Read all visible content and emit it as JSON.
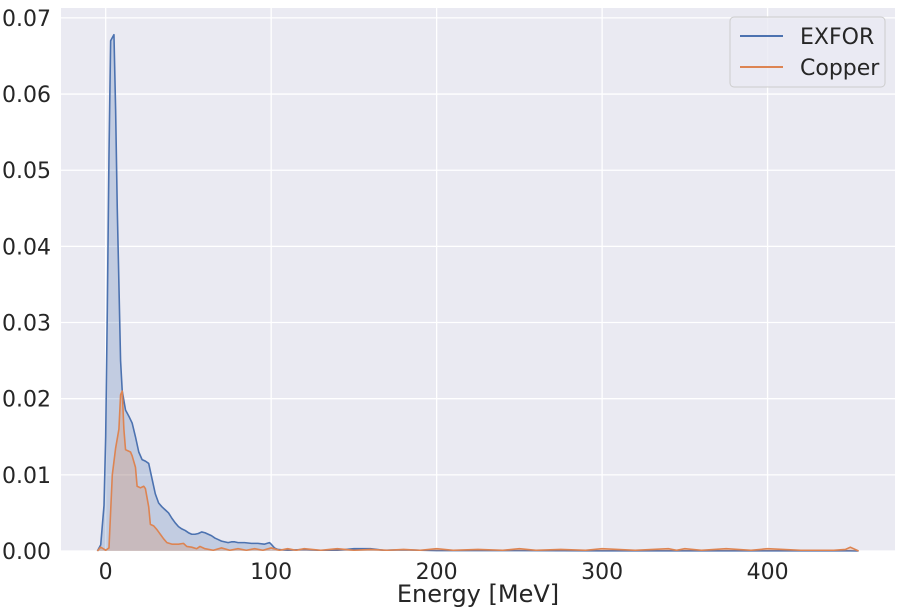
{
  "chart_data": {
    "type": "area",
    "title": "",
    "xlabel": "Energy [MeV]",
    "ylabel": "",
    "xlim": [
      -27,
      477
    ],
    "ylim": [
      0,
      0.0713
    ],
    "xticks": [
      0,
      100,
      200,
      300,
      400
    ],
    "xtick_labels": [
      "0",
      "100",
      "200",
      "300",
      "400"
    ],
    "yticks": [
      0,
      0.01,
      0.02,
      0.03,
      0.04,
      0.05,
      0.06,
      0.07
    ],
    "ytick_labels": [
      "0.00",
      "0.01",
      "0.02",
      "0.03",
      "0.04",
      "0.05",
      "0.06",
      "0.07"
    ],
    "grid": true,
    "legend_position": "top-right",
    "series": [
      {
        "name": "EXFOR",
        "color": "#4c72b0",
        "points": [
          [
            -5,
            0
          ],
          [
            -3,
            0.0008
          ],
          [
            -1,
            0.006
          ],
          [
            0,
            0.015
          ],
          [
            1,
            0.032
          ],
          [
            2,
            0.052
          ],
          [
            3,
            0.067
          ],
          [
            5,
            0.0678
          ],
          [
            6,
            0.058
          ],
          [
            7,
            0.045
          ],
          [
            8,
            0.035
          ],
          [
            9,
            0.025
          ],
          [
            10,
            0.021
          ],
          [
            12,
            0.0185
          ],
          [
            14,
            0.0177
          ],
          [
            16,
            0.0168
          ],
          [
            18,
            0.015
          ],
          [
            20,
            0.013
          ],
          [
            22,
            0.012
          ],
          [
            24,
            0.0118
          ],
          [
            26,
            0.0115
          ],
          [
            28,
            0.0095
          ],
          [
            30,
            0.0075
          ],
          [
            32,
            0.0063
          ],
          [
            34,
            0.0058
          ],
          [
            36,
            0.0054
          ],
          [
            38,
            0.005
          ],
          [
            40,
            0.0043
          ],
          [
            42,
            0.0037
          ],
          [
            44,
            0.0032
          ],
          [
            46,
            0.0029
          ],
          [
            48,
            0.0027
          ],
          [
            50,
            0.0024
          ],
          [
            52,
            0.0022
          ],
          [
            54,
            0.0022
          ],
          [
            56,
            0.0023
          ],
          [
            58,
            0.0025
          ],
          [
            60,
            0.0024
          ],
          [
            62,
            0.0022
          ],
          [
            64,
            0.002
          ],
          [
            66,
            0.0017
          ],
          [
            68,
            0.0015
          ],
          [
            70,
            0.0013
          ],
          [
            72,
            0.0012
          ],
          [
            74,
            0.0011
          ],
          [
            76,
            0.0012
          ],
          [
            78,
            0.0012
          ],
          [
            80,
            0.0011
          ],
          [
            84,
            0.0011
          ],
          [
            88,
            0.001
          ],
          [
            92,
            0.001
          ],
          [
            96,
            0.0009
          ],
          [
            99,
            0.0011
          ],
          [
            100,
            0.0009
          ],
          [
            102,
            0.0004
          ],
          [
            104,
            0.0002
          ],
          [
            110,
            0.0001
          ],
          [
            120,
            0.0002
          ],
          [
            128,
            0.0001
          ],
          [
            140,
            0.0001
          ],
          [
            150,
            0.0003
          ],
          [
            160,
            0.0003
          ],
          [
            168,
            0.0001
          ],
          [
            180,
            0.00015
          ],
          [
            190,
            0.0001
          ],
          [
            200,
            5e-05
          ],
          [
            250,
            5e-05
          ],
          [
            300,
            3e-05
          ],
          [
            350,
            2e-05
          ],
          [
            400,
            2e-05
          ],
          [
            450,
            2e-05
          ],
          [
            455,
            0
          ]
        ]
      },
      {
        "name": "Copper",
        "color": "#dd8452",
        "points": [
          [
            -5,
            0
          ],
          [
            -3,
            0.0005
          ],
          [
            0,
            0.0001
          ],
          [
            2,
            0.0004
          ],
          [
            4,
            0.01
          ],
          [
            6,
            0.0135
          ],
          [
            8,
            0.016
          ],
          [
            9,
            0.0205
          ],
          [
            10,
            0.021
          ],
          [
            11,
            0.016
          ],
          [
            12,
            0.0133
          ],
          [
            15,
            0.013
          ],
          [
            16,
            0.0125
          ],
          [
            18,
            0.011
          ],
          [
            19,
            0.0085
          ],
          [
            21,
            0.0083
          ],
          [
            23,
            0.0085
          ],
          [
            24,
            0.0082
          ],
          [
            26,
            0.0058
          ],
          [
            27,
            0.0035
          ],
          [
            29,
            0.0033
          ],
          [
            31,
            0.0028
          ],
          [
            33,
            0.0022
          ],
          [
            35,
            0.0016
          ],
          [
            37,
            0.0011
          ],
          [
            40,
            0.0009
          ],
          [
            44,
            0.0009
          ],
          [
            47,
            0.001
          ],
          [
            49,
            0.0006
          ],
          [
            52,
            0.0005
          ],
          [
            55,
            0.0003
          ],
          [
            57,
            0.0006
          ],
          [
            60,
            0.0003
          ],
          [
            65,
            0.0001
          ],
          [
            70,
            0.0004
          ],
          [
            75,
            0.0001
          ],
          [
            80,
            0.0003
          ],
          [
            85,
            0.0001
          ],
          [
            90,
            0.0003
          ],
          [
            95,
            0.0001
          ],
          [
            100,
            0.0004
          ],
          [
            105,
            0.0001
          ],
          [
            110,
            0.0003
          ],
          [
            115,
            0.0001
          ],
          [
            120,
            0.0003
          ],
          [
            130,
            0.0001
          ],
          [
            140,
            0.0003
          ],
          [
            150,
            0.0001
          ],
          [
            160,
            0.0002
          ],
          [
            170,
            0.0001
          ],
          [
            180,
            0.0002
          ],
          [
            190,
            0.0001
          ],
          [
            200,
            0.0003
          ],
          [
            210,
            0.0001
          ],
          [
            225,
            0.0002
          ],
          [
            240,
            0.0001
          ],
          [
            250,
            0.0003
          ],
          [
            260,
            0.0001
          ],
          [
            275,
            0.0002
          ],
          [
            290,
            0.0001
          ],
          [
            300,
            0.0003
          ],
          [
            320,
            0.0001
          ],
          [
            340,
            0.0003
          ],
          [
            345,
            0.0001
          ],
          [
            350,
            0.0003
          ],
          [
            360,
            0.0001
          ],
          [
            375,
            0.0003
          ],
          [
            390,
            0.0001
          ],
          [
            400,
            0.0003
          ],
          [
            420,
            0.0001
          ],
          [
            440,
            0.0001
          ],
          [
            447,
            0.0002
          ],
          [
            450,
            0.0005
          ],
          [
            453,
            0.0002
          ],
          [
            455,
            0
          ]
        ]
      }
    ]
  }
}
